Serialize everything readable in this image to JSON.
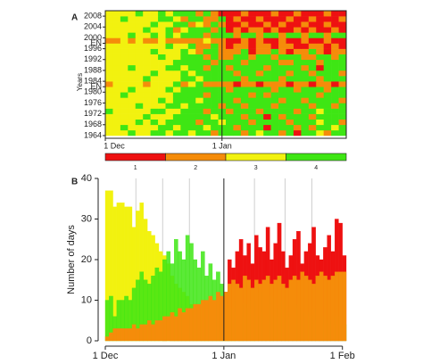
{
  "chart_data": [
    {
      "type": "heatmap",
      "panel": "A",
      "ylabel": "Years",
      "xlim": [
        0,
        64
      ],
      "ylim": [
        1963,
        2010
      ],
      "xticks": [
        {
          "value": 0,
          "label": "1 Dec"
        },
        {
          "value": 31,
          "label": "1 Jan"
        }
      ],
      "yticks": [
        1964,
        1968,
        1972,
        1976,
        1980,
        {
          "value": 1982,
          "label": "EN"
        },
        1984,
        1988,
        1992,
        1996,
        {
          "value": 1998,
          "label": "EN"
        },
        2000,
        2004,
        2008
      ],
      "scale": [
        {
          "value": 1,
          "color": "#ee1111"
        },
        {
          "value": 2,
          "color": "#f58c0a"
        },
        {
          "value": 3,
          "color": "#f2f20f"
        },
        {
          "value": 4,
          "color": "#3ee614"
        }
      ],
      "x": [
        0,
        2,
        4,
        6,
        8,
        10,
        12,
        14,
        16,
        18,
        20,
        22,
        24,
        26,
        28,
        30,
        32,
        34,
        36,
        38,
        40,
        42,
        44,
        46,
        48,
        50,
        52,
        54,
        56,
        58,
        60,
        62
      ],
      "years": [
        1964,
        1966,
        1968,
        1970,
        1972,
        1974,
        1976,
        1978,
        1980,
        1982,
        1984,
        1986,
        1988,
        1990,
        1992,
        1994,
        1996,
        1998,
        2000,
        2002,
        2004,
        2006,
        2008
      ],
      "rows": [
        [
          3,
          3,
          3,
          4,
          3,
          3,
          4,
          4,
          3,
          4,
          4,
          3,
          4,
          4,
          2,
          4,
          4,
          4,
          2,
          4,
          3,
          4,
          4,
          2,
          4,
          1,
          4,
          4,
          3,
          2,
          4,
          4
        ],
        [
          3,
          3,
          4,
          3,
          3,
          3,
          3,
          4,
          4,
          3,
          4,
          4,
          4,
          3,
          4,
          4,
          4,
          2,
          4,
          4,
          4,
          1,
          4,
          4,
          4,
          2,
          4,
          2,
          4,
          4,
          3,
          4
        ],
        [
          3,
          3,
          3,
          3,
          4,
          3,
          4,
          3,
          4,
          4,
          4,
          4,
          2,
          4,
          4,
          3,
          4,
          4,
          4,
          2,
          4,
          4,
          4,
          4,
          2,
          4,
          4,
          4,
          3,
          4,
          4,
          2
        ],
        [
          3,
          3,
          3,
          3,
          3,
          4,
          3,
          3,
          3,
          4,
          4,
          4,
          4,
          4,
          3,
          4,
          4,
          4,
          2,
          4,
          4,
          1,
          4,
          2,
          4,
          4,
          4,
          2,
          4,
          4,
          4,
          4
        ],
        [
          4,
          3,
          3,
          3,
          3,
          3,
          4,
          4,
          3,
          3,
          4,
          4,
          4,
          2,
          4,
          4,
          2,
          4,
          4,
          4,
          2,
          4,
          4,
          4,
          4,
          2,
          4,
          4,
          3,
          4,
          4,
          4
        ],
        [
          3,
          3,
          3,
          3,
          4,
          3,
          3,
          3,
          4,
          4,
          3,
          4,
          4,
          4,
          4,
          2,
          4,
          4,
          2,
          4,
          4,
          4,
          2,
          4,
          4,
          4,
          4,
          2,
          4,
          4,
          2,
          4
        ],
        [
          3,
          3,
          3,
          3,
          3,
          3,
          3,
          4,
          3,
          4,
          4,
          4,
          3,
          4,
          4,
          4,
          4,
          2,
          4,
          4,
          4,
          4,
          4,
          2,
          4,
          4,
          2,
          4,
          4,
          4,
          4,
          2
        ],
        [
          3,
          3,
          4,
          3,
          3,
          3,
          3,
          3,
          3,
          4,
          4,
          4,
          4,
          2,
          4,
          4,
          4,
          4,
          4,
          2,
          4,
          2,
          4,
          4,
          4,
          4,
          4,
          4,
          2,
          4,
          4,
          4
        ],
        [
          3,
          3,
          3,
          4,
          3,
          3,
          3,
          3,
          4,
          3,
          4,
          4,
          4,
          4,
          4,
          4,
          2,
          4,
          4,
          4,
          4,
          4,
          2,
          4,
          4,
          2,
          4,
          4,
          4,
          2,
          4,
          4
        ],
        [
          2,
          3,
          3,
          3,
          3,
          2,
          3,
          3,
          3,
          4,
          2,
          3,
          4,
          2,
          2,
          2,
          2,
          1,
          2,
          2,
          1,
          2,
          2,
          2,
          1,
          2,
          2,
          1,
          2,
          2,
          1,
          2
        ],
        [
          3,
          3,
          3,
          3,
          3,
          4,
          3,
          3,
          3,
          3,
          4,
          4,
          3,
          4,
          4,
          4,
          4,
          4,
          2,
          4,
          4,
          4,
          4,
          2,
          4,
          4,
          4,
          4,
          2,
          4,
          4,
          4
        ],
        [
          3,
          3,
          3,
          3,
          3,
          3,
          4,
          3,
          3,
          3,
          4,
          3,
          4,
          4,
          4,
          4,
          4,
          2,
          4,
          4,
          2,
          4,
          4,
          4,
          2,
          4,
          4,
          2,
          4,
          4,
          4,
          2
        ],
        [
          3,
          3,
          3,
          4,
          3,
          3,
          3,
          3,
          4,
          4,
          3,
          4,
          4,
          2,
          4,
          4,
          2,
          4,
          4,
          4,
          4,
          2,
          4,
          4,
          4,
          4,
          2,
          4,
          1,
          4,
          4,
          4
        ],
        [
          3,
          3,
          3,
          3,
          3,
          3,
          3,
          3,
          3,
          4,
          4,
          4,
          4,
          4,
          2,
          4,
          4,
          4,
          2,
          4,
          4,
          4,
          4,
          2,
          2,
          4,
          4,
          4,
          2,
          4,
          4,
          4
        ],
        [
          3,
          3,
          3,
          3,
          3,
          3,
          3,
          4,
          3,
          3,
          4,
          4,
          4,
          2,
          4,
          2,
          2,
          4,
          4,
          2,
          4,
          4,
          2,
          4,
          4,
          4,
          2,
          2,
          4,
          4,
          2,
          4
        ],
        [
          3,
          3,
          3,
          3,
          3,
          3,
          4,
          3,
          3,
          3,
          4,
          3,
          2,
          4,
          4,
          2,
          2,
          2,
          4,
          1,
          2,
          2,
          4,
          2,
          1,
          2,
          2,
          4,
          2,
          1,
          2,
          2
        ],
        [
          3,
          3,
          3,
          3,
          3,
          3,
          3,
          3,
          4,
          3,
          3,
          4,
          2,
          2,
          4,
          2,
          1,
          2,
          2,
          1,
          2,
          2,
          1,
          2,
          2,
          1,
          1,
          2,
          2,
          1,
          2,
          1
        ],
        [
          2,
          2,
          3,
          2,
          3,
          2,
          2,
          3,
          2,
          2,
          2,
          2,
          2,
          3,
          2,
          2,
          1,
          1,
          2,
          1,
          2,
          1,
          1,
          2,
          1,
          1,
          2,
          1,
          1,
          2,
          1,
          1
        ],
        [
          3,
          3,
          3,
          4,
          3,
          3,
          4,
          3,
          4,
          3,
          4,
          4,
          4,
          2,
          4,
          4,
          4,
          2,
          4,
          4,
          2,
          4,
          4,
          2,
          4,
          4,
          2,
          4,
          4,
          2,
          4,
          4
        ],
        [
          3,
          3,
          3,
          3,
          3,
          4,
          3,
          3,
          4,
          2,
          3,
          4,
          4,
          4,
          2,
          4,
          1,
          2,
          1,
          2,
          2,
          1,
          2,
          1,
          1,
          2,
          1,
          2,
          1,
          1,
          2,
          1
        ],
        [
          3,
          3,
          3,
          3,
          3,
          3,
          4,
          3,
          3,
          4,
          4,
          2,
          3,
          2,
          4,
          2,
          1,
          1,
          2,
          1,
          1,
          2,
          1,
          2,
          1,
          1,
          2,
          1,
          1,
          2,
          1,
          1
        ],
        [
          3,
          3,
          4,
          3,
          3,
          3,
          3,
          4,
          4,
          3,
          2,
          4,
          4,
          2,
          2,
          4,
          1,
          2,
          1,
          1,
          2,
          1,
          1,
          1,
          2,
          1,
          1,
          2,
          1,
          1,
          1,
          2
        ],
        [
          3,
          3,
          3,
          3,
          4,
          3,
          3,
          4,
          3,
          4,
          4,
          4,
          2,
          4,
          2,
          1,
          1,
          1,
          2,
          1,
          1,
          1,
          2,
          1,
          1,
          2,
          1,
          1,
          1,
          2,
          1,
          1
        ]
      ]
    },
    {
      "type": "bar",
      "panel": "B",
      "ylabel": "Number of days",
      "xlim": [
        0,
        63
      ],
      "ylim": [
        0,
        40
      ],
      "yticks": [
        0,
        10,
        20,
        30,
        40
      ],
      "xticks": [
        {
          "value": 0,
          "label": "1 Dec"
        },
        {
          "value": 31,
          "label": "1 Jan"
        },
        {
          "value": 62,
          "label": "1 Feb"
        }
      ],
      "grid_x": [
        8,
        15,
        22,
        39,
        47,
        54
      ],
      "x": [
        0,
        1,
        2,
        3,
        4,
        5,
        6,
        7,
        8,
        9,
        10,
        11,
        12,
        13,
        14,
        15,
        16,
        17,
        18,
        19,
        20,
        21,
        22,
        23,
        24,
        25,
        26,
        27,
        28,
        29,
        30,
        31,
        32,
        33,
        34,
        35,
        36,
        37,
        38,
        39,
        40,
        41,
        42,
        43,
        44,
        45,
        46,
        47,
        48,
        49,
        50,
        51,
        52,
        53,
        54,
        55,
        56,
        57,
        58,
        59,
        60,
        61,
        62
      ],
      "series": [
        {
          "color": "#ee1111",
          "values": [
            0,
            0,
            0,
            0,
            0,
            0,
            0,
            0,
            0,
            0,
            0,
            0,
            0,
            0,
            0,
            1,
            0,
            1,
            1,
            2,
            2,
            2,
            3,
            3,
            4,
            4,
            5,
            6,
            7,
            8,
            9,
            12,
            20,
            18,
            22,
            25,
            21,
            24,
            19,
            26,
            23,
            22,
            28,
            20,
            24,
            29,
            22,
            18,
            21,
            25,
            27,
            19,
            22,
            24,
            28,
            21,
            20,
            23,
            26,
            22,
            30,
            29,
            21
          ]
        },
        {
          "color": "#f2f20f",
          "values": [
            37,
            37,
            33,
            34,
            34,
            33,
            33,
            28,
            32,
            34,
            30,
            27,
            26,
            24,
            22,
            21,
            19,
            16,
            14,
            13,
            12,
            11,
            9,
            7,
            6,
            5,
            4,
            4,
            3,
            2,
            2,
            1,
            1,
            1,
            0,
            1,
            0,
            0,
            1,
            0,
            0,
            0,
            0,
            1,
            0,
            0,
            0,
            0,
            0,
            0,
            0,
            0,
            0,
            0,
            0,
            0,
            0,
            0,
            0,
            0,
            0,
            0,
            0
          ]
        },
        {
          "color": "#3ee614",
          "values": [
            10,
            11,
            6,
            10,
            10,
            11,
            10,
            13,
            15,
            17,
            15,
            14,
            16,
            18,
            17,
            20,
            22,
            19,
            25,
            22,
            20,
            26,
            24,
            20,
            18,
            22,
            16,
            19,
            15,
            17,
            14,
            9,
            8,
            7,
            10,
            6,
            9,
            8,
            10,
            6,
            12,
            7,
            9,
            11,
            6,
            8,
            10,
            7,
            6,
            9,
            8,
            5,
            7,
            6,
            8,
            5,
            6,
            4,
            5,
            4,
            6,
            3,
            4
          ]
        },
        {
          "color": "#f58c0a",
          "values": [
            1,
            2,
            3,
            3,
            3,
            3,
            3,
            4,
            3,
            4,
            4,
            5,
            4,
            5,
            5,
            6,
            6,
            7,
            6,
            8,
            7,
            8,
            8,
            9,
            9,
            10,
            10,
            11,
            10,
            12,
            11,
            12,
            14,
            15,
            14,
            13,
            16,
            15,
            13,
            15,
            14,
            15,
            16,
            14,
            15,
            16,
            14,
            13,
            15,
            16,
            15,
            17,
            16,
            15,
            14,
            16,
            17,
            16,
            15,
            16,
            17,
            17,
            17
          ]
        }
      ]
    }
  ]
}
